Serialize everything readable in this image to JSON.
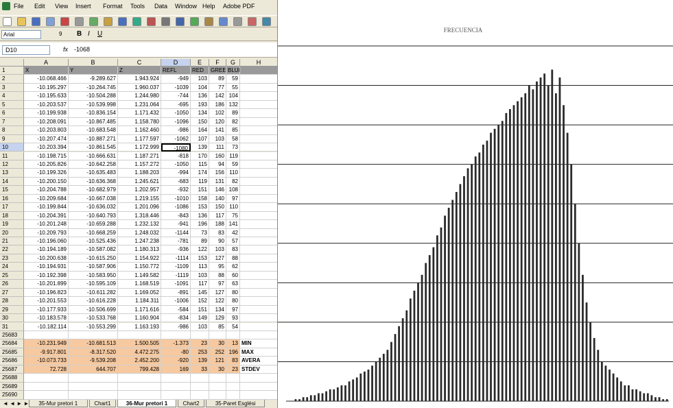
{
  "app": {
    "menu": [
      "File",
      "Edit",
      "View",
      "Insert",
      "Format",
      "Tools",
      "Data",
      "Window",
      "Help",
      "Adobe PDF"
    ],
    "font": "Arial",
    "font_size": "9",
    "name_box": "D10",
    "formula": "-1068"
  },
  "sheet": {
    "columns": [
      "A",
      "B",
      "C",
      "D",
      "E",
      "F",
      "G",
      "H"
    ],
    "rows": [
      {
        "n": "1",
        "cells": [
          "X",
          "Y",
          "Z",
          "REFL",
          "RED",
          "GREE",
          "BLUE"
        ]
      },
      {
        "n": "2",
        "cells": [
          "-10.068.466",
          "-9.289.627",
          "1.943.924",
          "-949",
          "103",
          "89",
          "59"
        ]
      },
      {
        "n": "3",
        "cells": [
          "-10.195.297",
          "-10.264.745",
          "1.960.037",
          "-1039",
          "104",
          "77",
          "55"
        ]
      },
      {
        "n": "4",
        "cells": [
          "-10.195.633",
          "-10.504.288",
          "1.244.980",
          "-744",
          "136",
          "142",
          "104"
        ]
      },
      {
        "n": "5",
        "cells": [
          "-10.203.537",
          "-10.539.998",
          "1.231.064",
          "-695",
          "193",
          "186",
          "132"
        ]
      },
      {
        "n": "6",
        "cells": [
          "-10.199.938",
          "-10.836.154",
          "1.171.432",
          "-1050",
          "134",
          "102",
          "89"
        ]
      },
      {
        "n": "7",
        "cells": [
          "-10.208.091",
          "-10.867.485",
          "1.158.780",
          "-1096",
          "150",
          "120",
          "82"
        ]
      },
      {
        "n": "8",
        "cells": [
          "-10.203.803",
          "-10.683.548",
          "1.162.460",
          "-986",
          "164",
          "141",
          "85"
        ]
      },
      {
        "n": "9",
        "cells": [
          "-10.207.474",
          "-10.887.271",
          "1.177.597",
          "-1062",
          "107",
          "103",
          "58"
        ]
      },
      {
        "n": "10",
        "cells": [
          "-10.203.394",
          "-10.861.545",
          "1.172.999",
          "-1080",
          "139",
          "111",
          "73"
        ]
      },
      {
        "n": "11",
        "cells": [
          "-10.198.715",
          "-10.666.631",
          "1.187.271",
          "-818",
          "170",
          "160",
          "119"
        ]
      },
      {
        "n": "12",
        "cells": [
          "-10.205.826",
          "-10.642.258",
          "1.157.272",
          "-1050",
          "115",
          "94",
          "59"
        ]
      },
      {
        "n": "13",
        "cells": [
          "-10.199.326",
          "-10.635.483",
          "1.188.203",
          "-994",
          "174",
          "156",
          "110"
        ]
      },
      {
        "n": "14",
        "cells": [
          "-10.200.150",
          "-10.636.368",
          "1.245.621",
          "-683",
          "119",
          "131",
          "82"
        ]
      },
      {
        "n": "15",
        "cells": [
          "-10.204.788",
          "-10.682.979",
          "1.202.957",
          "-932",
          "151",
          "146",
          "108"
        ]
      },
      {
        "n": "16",
        "cells": [
          "-10.209.684",
          "-10.667.038",
          "1.219.155",
          "-1010",
          "158",
          "140",
          "97"
        ]
      },
      {
        "n": "17",
        "cells": [
          "-10.199.844",
          "-10.636.032",
          "1.201.096",
          "-1086",
          "153",
          "150",
          "110"
        ]
      },
      {
        "n": "18",
        "cells": [
          "-10.204.391",
          "-10.640.793",
          "1.318.446",
          "-843",
          "136",
          "117",
          "75"
        ]
      },
      {
        "n": "19",
        "cells": [
          "-10.201.248",
          "-10.659.288",
          "1.232.132",
          "-941",
          "196",
          "188",
          "141"
        ]
      },
      {
        "n": "20",
        "cells": [
          "-10.209.793",
          "-10.668.259",
          "1.248.032",
          "-1144",
          "73",
          "83",
          "42"
        ]
      },
      {
        "n": "21",
        "cells": [
          "-10.196.060",
          "-10.525.436",
          "1.247.238",
          "-781",
          "89",
          "90",
          "57"
        ]
      },
      {
        "n": "22",
        "cells": [
          "-10.194.189",
          "-10.587.082",
          "1.180.313",
          "-936",
          "122",
          "103",
          "83"
        ]
      },
      {
        "n": "23",
        "cells": [
          "-10.200.638",
          "-10.615.250",
          "1.154.922",
          "-1114",
          "153",
          "127",
          "88"
        ]
      },
      {
        "n": "24",
        "cells": [
          "-10.194.931",
          "-10.587.906",
          "1.150.772",
          "-1109",
          "113",
          "95",
          "62"
        ]
      },
      {
        "n": "25",
        "cells": [
          "-10.192.398",
          "-10.583.950",
          "1.149.582",
          "-1119",
          "103",
          "88",
          "60"
        ]
      },
      {
        "n": "26",
        "cells": [
          "-10.201.899",
          "-10.595.109",
          "1.168.519",
          "-1091",
          "117",
          "97",
          "63"
        ]
      },
      {
        "n": "27",
        "cells": [
          "-10.196.823",
          "-10.611.282",
          "1.169.052",
          "-891",
          "145",
          "127",
          "80"
        ]
      },
      {
        "n": "28",
        "cells": [
          "-10.201.553",
          "-10.616.228",
          "1.184.311",
          "-1006",
          "152",
          "122",
          "80"
        ]
      },
      {
        "n": "29",
        "cells": [
          "-10.177.933",
          "-10.506.699",
          "1.171.616",
          "-584",
          "151",
          "134",
          "97"
        ]
      },
      {
        "n": "30",
        "cells": [
          "-10.183.578",
          "-10.533.768",
          "1.160.904",
          "-834",
          "149",
          "129",
          "93"
        ]
      },
      {
        "n": "31",
        "cells": [
          "-10.182.114",
          "-10.553.299",
          "1.163.193",
          "-986",
          "103",
          "85",
          "54"
        ]
      },
      {
        "n": "25683",
        "cells": []
      },
      {
        "n": "25684",
        "cells": [
          "-10.231.949",
          "-10.681.513",
          "1.500.505",
          "-1.373",
          "23",
          "30",
          "13",
          "MIN"
        ]
      },
      {
        "n": "25685",
        "cells": [
          "-9.917.801",
          "-8.317.520",
          "4.472.275",
          "-80",
          "253",
          "252",
          "196",
          "MAX"
        ]
      },
      {
        "n": "25686",
        "cells": [
          "-10.073.733",
          "-9.539.208",
          "2.452.200",
          "-920",
          "139",
          "121",
          "83",
          "AVERA"
        ]
      },
      {
        "n": "25687",
        "cells": [
          "72.728",
          "644.707",
          "799.428",
          "169",
          "33",
          "30",
          "23",
          "STDEV"
        ]
      },
      {
        "n": "25688",
        "cells": []
      },
      {
        "n": "25689",
        "cells": []
      },
      {
        "n": "25690",
        "cells": []
      }
    ],
    "tabs": [
      "35-Mur pretori 1",
      "Chart1",
      "36-Mur pretori 1",
      "Chart2",
      "35-Paret Esglési"
    ]
  },
  "chart_data": {
    "type": "bar",
    "title": "FRECUENCIA",
    "color": "#2a2a2a",
    "ylim": [
      0,
      9
    ],
    "gridlines": [
      1,
      2,
      3,
      4,
      5,
      6,
      7,
      8,
      9
    ],
    "grid": true,
    "values": [
      0,
      0,
      0.05,
      0.05,
      0.1,
      0.1,
      0.15,
      0.15,
      0.2,
      0.2,
      0.25,
      0.3,
      0.3,
      0.35,
      0.4,
      0.4,
      0.5,
      0.55,
      0.6,
      0.7,
      0.75,
      0.8,
      0.9,
      1.0,
      1.1,
      1.2,
      1.3,
      1.5,
      1.7,
      1.9,
      2.1,
      2.3,
      2.6,
      2.8,
      3.0,
      3.2,
      3.5,
      3.7,
      3.9,
      4.2,
      4.4,
      4.7,
      4.9,
      5.1,
      5.3,
      5.5,
      5.7,
      5.9,
      6.0,
      6.2,
      6.3,
      6.5,
      6.6,
      6.8,
      6.9,
      7.0,
      7.1,
      7.3,
      7.4,
      7.5,
      7.6,
      7.7,
      7.8,
      8.0,
      7.9,
      8.1,
      8.2,
      8.3,
      8.0,
      8.4,
      7.8,
      8.2,
      7.5,
      6.8,
      6.0,
      5.0,
      4.0,
      3.2,
      2.5,
      2.0,
      1.6,
      1.3,
      1.0,
      0.9,
      0.8,
      0.7,
      0.6,
      0.5,
      0.4,
      0.4,
      0.3,
      0.3,
      0.25,
      0.2,
      0.2,
      0.15,
      0.1,
      0.1,
      0.05,
      0.05
    ]
  }
}
